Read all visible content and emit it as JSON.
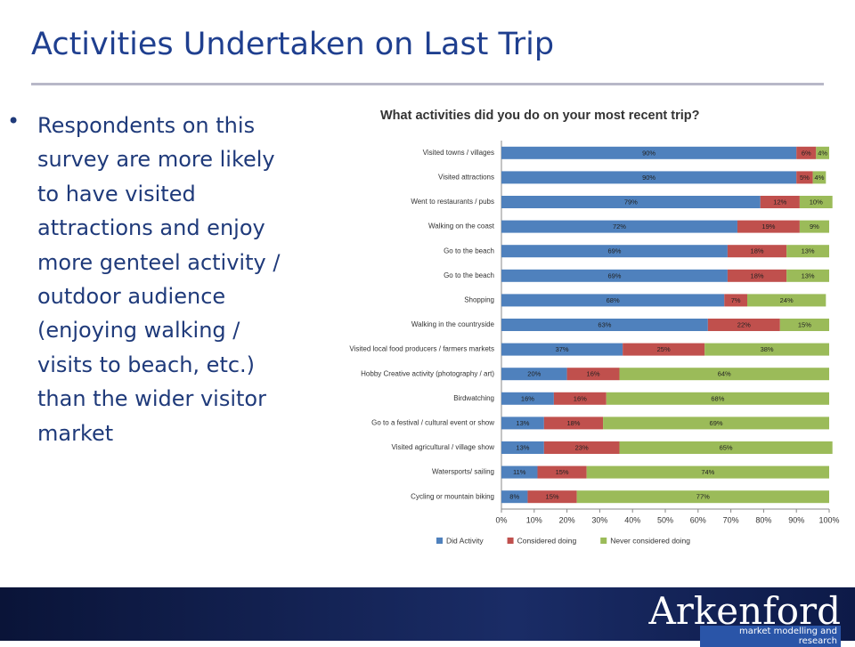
{
  "slide": {
    "title": "Activities Undertaken on Last Trip",
    "bullet": "Respondents on this survey are more likely to have visited attractions and enjoy more genteel activity / outdoor audience (enjoying walking / visits to beach, etc.) than the wider visitor market",
    "logo": "Arkenford",
    "logo_tagline": "market modelling and research"
  },
  "chart_data": {
    "type": "stacked-bar-horizontal",
    "title": "What activities did you do on your most recent trip?",
    "categories": [
      "Visited towns / villages",
      "Visited attractions",
      "Went to restaurants / pubs",
      "Walking on the coast",
      "Go to the beach",
      "Go to the beach",
      "Shopping",
      "Walking in the countryside",
      "Visited local food producers / farmers markets",
      "Hobby Creative activity (photography / art)",
      "Birdwatching",
      "Go to a festival / cultural event or show",
      "Visited agricultural / village show",
      "Watersports/ sailing",
      "Cycling or mountain biking"
    ],
    "series": [
      {
        "name": "Did Activity",
        "color": "#4f81bd",
        "values": [
          90,
          90,
          79,
          72,
          69,
          69,
          68,
          63,
          37,
          20,
          16,
          13,
          13,
          11,
          8
        ],
        "value_labels": [
          "90%",
          "90%",
          "79%",
          "72%",
          "69%",
          "69%",
          "68%",
          "63%",
          "37%",
          "20%",
          "16%",
          "13%",
          "13%",
          "11%",
          "8%"
        ]
      },
      {
        "name": "Considered doing",
        "color": "#c0504d",
        "values": [
          6,
          5,
          12,
          19,
          18,
          18,
          7,
          22,
          25,
          16,
          16,
          18,
          23,
          15,
          15
        ],
        "value_labels": [
          "6%",
          "5%",
          "12%",
          "19%",
          "18%",
          "18%",
          "7%",
          "22%",
          "25%",
          "16%",
          "16%",
          "18%",
          "23%",
          "15%",
          "15%"
        ]
      },
      {
        "name": "Never considered doing",
        "color": "#9bbb59",
        "values": [
          4,
          4,
          10,
          9,
          13,
          13,
          24,
          15,
          38,
          64,
          68,
          69,
          65,
          74,
          77
        ],
        "value_labels": [
          "4%",
          "4%",
          "10%",
          "9%",
          "13%",
          "13%",
          "24%",
          "15%",
          "38%",
          "64%",
          "68%",
          "69%",
          "65%",
          "74%",
          "77%"
        ]
      }
    ],
    "xlim": [
      0,
      100
    ],
    "xticks": [
      {
        "value": 0,
        "label": "0%"
      },
      {
        "value": 10,
        "label": "10%"
      },
      {
        "value": 20,
        "label": "20%"
      },
      {
        "value": 30,
        "label": "30%"
      },
      {
        "value": 40,
        "label": "40%"
      },
      {
        "value": 50,
        "label": "50%"
      },
      {
        "value": 60,
        "label": "60%"
      },
      {
        "value": 70,
        "label": "70%"
      },
      {
        "value": 80,
        "label": "80%"
      },
      {
        "value": 90,
        "label": "90%"
      },
      {
        "value": 100,
        "label": "100%"
      }
    ],
    "grid": false,
    "legend": "bottom"
  }
}
